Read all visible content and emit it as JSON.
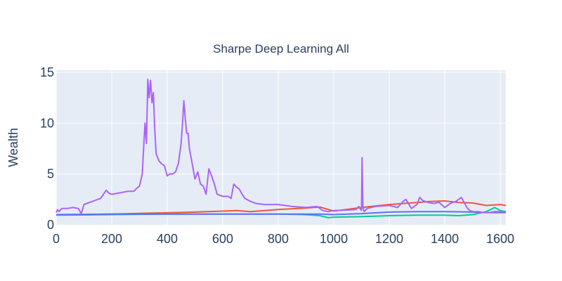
{
  "chart_data": {
    "type": "line",
    "title": "Sharpe Deep Learning All",
    "xlabel": "",
    "ylabel": "Wealth",
    "xlim": [
      0,
      1620
    ],
    "ylim": [
      0,
      15.2
    ],
    "x_ticks": [
      0,
      200,
      400,
      600,
      800,
      1000,
      1200,
      1400,
      1600
    ],
    "y_ticks": [
      0,
      5,
      10,
      15
    ],
    "grid": true,
    "legend": "none",
    "series": [
      {
        "name": "series-red",
        "color": "#EF553B",
        "x": [
          0,
          100,
          200,
          300,
          400,
          500,
          600,
          650,
          700,
          800,
          900,
          950,
          1000,
          1100,
          1200,
          1300,
          1350,
          1400,
          1450,
          1500,
          1550,
          1600,
          1620
        ],
        "y": [
          1.0,
          1.02,
          1.05,
          1.12,
          1.18,
          1.25,
          1.35,
          1.4,
          1.3,
          1.5,
          1.65,
          1.75,
          1.35,
          1.7,
          2.0,
          2.2,
          2.3,
          2.35,
          2.2,
          2.15,
          1.9,
          2.0,
          1.9
        ]
      },
      {
        "name": "series-green",
        "color": "#00CC96",
        "x": [
          0,
          200,
          400,
          600,
          800,
          900,
          950,
          980,
          1000,
          1100,
          1200,
          1300,
          1400,
          1450,
          1500,
          1550,
          1580,
          1600,
          1620
        ],
        "y": [
          0.95,
          1.0,
          1.05,
          1.05,
          1.05,
          1.0,
          0.9,
          0.7,
          0.75,
          0.8,
          0.9,
          0.95,
          0.95,
          0.9,
          1.0,
          1.3,
          1.7,
          1.4,
          1.3
        ]
      },
      {
        "name": "series-blue",
        "color": "#636EFA",
        "x": [
          0,
          200,
          400,
          600,
          800,
          950,
          1000,
          1100,
          1200,
          1300,
          1400,
          1450,
          1500,
          1550,
          1600,
          1620
        ],
        "y": [
          1.0,
          1.05,
          1.05,
          1.05,
          1.05,
          1.05,
          1.0,
          1.1,
          1.25,
          1.3,
          1.3,
          1.28,
          1.25,
          1.2,
          1.2,
          1.2
        ]
      },
      {
        "name": "series-purple",
        "color": "#AB63FA",
        "x": [
          0,
          5,
          10,
          20,
          40,
          60,
          80,
          90,
          100,
          120,
          140,
          160,
          170,
          180,
          190,
          200,
          220,
          240,
          260,
          280,
          290,
          300,
          310,
          315,
          320,
          325,
          330,
          335,
          340,
          345,
          350,
          355,
          360,
          370,
          380,
          390,
          400,
          410,
          420,
          430,
          440,
          450,
          455,
          460,
          465,
          470,
          475,
          480,
          490,
          500,
          510,
          520,
          530,
          540,
          550,
          560,
          570,
          580,
          600,
          620,
          630,
          640,
          650,
          660,
          670,
          680,
          700,
          720,
          750,
          800,
          850,
          900,
          940,
          960,
          980,
          1000,
          1050,
          1080,
          1090,
          1100,
          1102,
          1105,
          1110,
          1120,
          1150,
          1200,
          1230,
          1250,
          1260,
          1280,
          1300,
          1310,
          1320,
          1340,
          1360,
          1380,
          1400,
          1420,
          1440,
          1460,
          1470,
          1480,
          1490,
          1500,
          1520,
          1540,
          1560,
          1580,
          1600,
          1620
        ],
        "y": [
          1.2,
          1.5,
          1.3,
          1.6,
          1.6,
          1.7,
          1.6,
          1.1,
          2.0,
          2.2,
          2.4,
          2.6,
          3.0,
          3.4,
          3.1,
          3.0,
          3.1,
          3.2,
          3.3,
          3.3,
          3.6,
          3.8,
          5.0,
          7.5,
          10.0,
          8.0,
          14.3,
          12.5,
          14.2,
          12.0,
          13.0,
          9.5,
          7.0,
          6.3,
          6.0,
          5.8,
          4.8,
          5.0,
          5.0,
          5.2,
          6.0,
          8.0,
          10.0,
          12.2,
          10.5,
          9.0,
          9.0,
          7.5,
          6.0,
          4.5,
          5.2,
          4.0,
          3.8,
          3.0,
          5.5,
          4.8,
          4.0,
          3.0,
          2.8,
          2.8,
          2.6,
          4.0,
          3.7,
          3.5,
          3.0,
          2.6,
          2.3,
          2.1,
          2.0,
          2.0,
          1.8,
          1.7,
          1.8,
          1.4,
          1.3,
          1.4,
          1.45,
          1.5,
          1.8,
          1.4,
          6.6,
          1.8,
          1.3,
          1.6,
          1.8,
          1.9,
          1.7,
          2.3,
          2.5,
          1.6,
          2.0,
          2.7,
          2.4,
          2.2,
          2.1,
          2.2,
          1.7,
          2.1,
          2.3,
          2.7,
          2.2,
          1.7,
          1.4,
          1.3,
          1.3,
          1.2,
          1.2,
          1.3,
          1.3,
          1.3
        ]
      }
    ]
  }
}
